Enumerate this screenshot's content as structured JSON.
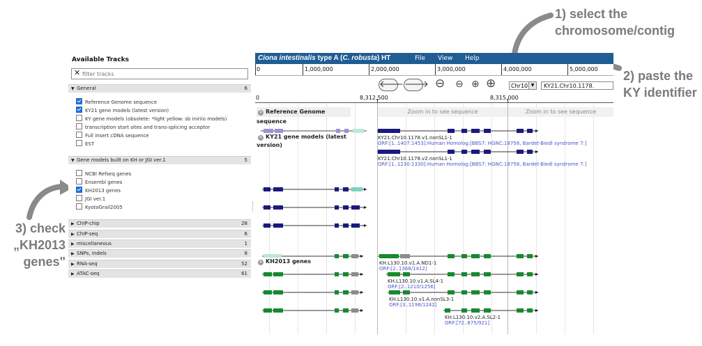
{
  "annotations": {
    "step1_line1": "1) select the",
    "step1_line2": "chromosome/contig",
    "step2_line1": "2) paste the",
    "step2_line2": "KY identifier",
    "step3_line1": "3) check",
    "step3_line2": "„KH2013",
    "step3_line3": "genes\""
  },
  "sidebar": {
    "title": "Available Tracks",
    "filter_placeholder": "filter tracks",
    "categories": [
      {
        "name": "General",
        "count": "6"
      },
      {
        "name": "Gene models built on KH or JGI ver.1",
        "count": "5"
      },
      {
        "name": "ChIP-chip",
        "count": "28"
      },
      {
        "name": "ChIP-seq",
        "count": "6"
      },
      {
        "name": "miscellaneous",
        "count": "1"
      },
      {
        "name": "SNPs, Indels",
        "count": "8"
      },
      {
        "name": "RNA-seq",
        "count": "52"
      },
      {
        "name": "ATAC-seq",
        "count": "61"
      }
    ],
    "general_tracks": [
      {
        "label": "Reference Genome sequence",
        "checked": true
      },
      {
        "label": "KY21 gene models (latest version)",
        "checked": true
      },
      {
        "label": "KY gene models (obsolete: *light yellow: sb iniriio models)",
        "checked": false
      },
      {
        "label": "transcription start sites and trans-splicing acceptor",
        "checked": false
      },
      {
        "label": "Full insert cDNA sequence",
        "checked": false
      },
      {
        "label": "EST",
        "checked": false
      }
    ],
    "kh_tracks": [
      {
        "label": "NCBI Refseq genes",
        "checked": false
      },
      {
        "label": "Ensembl genes",
        "checked": false
      },
      {
        "label": "KH2013 genes",
        "checked": true
      },
      {
        "label": "JGI ver.1",
        "checked": false
      },
      {
        "label": "KyotoGrail2005",
        "checked": false
      }
    ]
  },
  "browser": {
    "title_italic": "Ciona intestinalis",
    "title_rest": " type A (",
    "title_italic2": "C. robusta",
    "title_end": ") HT",
    "menus": [
      "File",
      "View",
      "Help"
    ],
    "overview_ticks": [
      "0",
      "1,000,000",
      "2,000,000",
      "3,000,000",
      "4,000,000",
      "5,000,000"
    ],
    "chromosome": "Chr10",
    "location": "KY21.Chr10.1178.",
    "detail_ticks": [
      "0",
      "8,312,500",
      "8,315,000"
    ],
    "zoom_to_see": "Zoom in to see sequence",
    "tracks": {
      "reference": "Reference Genome sequence",
      "ky21": "KY21 gene models (latest version)",
      "kh2013": "KH2013 genes"
    },
    "features": {
      "ky21_a_name": "KY21.Chr10.1178.v1.nonSL1-1",
      "ky21_a_desc": "ORF:[1..1407:1453]:Human Homolog:[BBS7: HGNC:18758, Bardet-Biedl syndrome 7:]",
      "ky21_b_name": "KY21.Chr10.1178.v2.nonSL1-1",
      "ky21_b_desc": "ORF:[1..1230:1330]:Human Homolog:[BBS7: HGNC:18758, Bardet-Biedl syndrome 7:]",
      "kh_a_name": "KH.L130.10.v1.A.ND1-1",
      "kh_a_desc": "ORF:[2..1368/1412]",
      "kh_b_name": "KH.L130.10.v1.A.SL4-1",
      "kh_b_desc": "ORF:[2..1210/1256]",
      "kh_c_name": "KH.L130.10.v1.A.nonSL3-1",
      "kh_c_desc": "ORF:[3..1198/1242]",
      "kh_d_name": "KH.L130.10.v2.A.SL2-1",
      "kh_d_desc": "ORF:[72..875/921]"
    }
  },
  "colors": {
    "titlebar": "#1f5d94",
    "ky21_exon": "#1a1a7e",
    "kh_exon": "#168a2e",
    "utr_teal": "#7fd3c0",
    "anno_text": "#7a7a7a"
  }
}
